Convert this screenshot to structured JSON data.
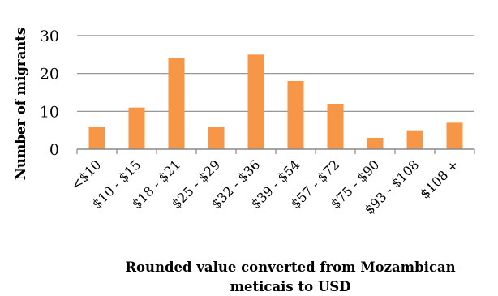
{
  "chart_data": {
    "type": "bar",
    "title": "",
    "ylabel": "Number of migrants",
    "xlabel_lines": [
      "Rounded value converted from Mozambican",
      "meticais to USD"
    ],
    "categories": [
      "<$10",
      "$10 - $15",
      "$18 - $21",
      "$25 - $29",
      "$32 - $36",
      "$39 - $54",
      "$57 - $72",
      "$75 - $90",
      "$93 - $108",
      "$108 +"
    ],
    "values": [
      6,
      11,
      24,
      6,
      25,
      18,
      12,
      3,
      5,
      7
    ],
    "ylim": [
      0,
      30
    ],
    "yticks": [
      0,
      10,
      20,
      30
    ],
    "grid": true,
    "legend": "none",
    "bar_color": "#F79646",
    "grid_color": "#898989"
  }
}
